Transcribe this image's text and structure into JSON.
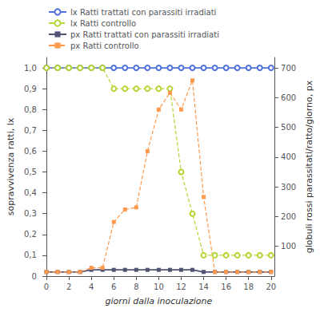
{
  "chart_data": {
    "type": "line",
    "xlabel": "giorni dalla inoculazione",
    "ylabel": "sopravvivenza ratti, lx",
    "y2label": "globuli rossi parassitati/ratto/giorno, px",
    "x": [
      0,
      1,
      2,
      3,
      4,
      5,
      6,
      7,
      8,
      9,
      10,
      11,
      12,
      13,
      14,
      15,
      16,
      17,
      18,
      19,
      20
    ],
    "xlim": [
      -0.3,
      20.3
    ],
    "xticks": [
      0,
      2,
      4,
      6,
      8,
      10,
      12,
      14,
      16,
      18,
      20
    ],
    "ylim": [
      0.0,
      1.05
    ],
    "yticks": [
      0,
      {
        "value": 0.1,
        "label": "0,1"
      },
      {
        "value": 0.2,
        "label": "0,2"
      },
      {
        "value": 0.3,
        "label": "0,3"
      },
      {
        "value": 0.4,
        "label": "0,4"
      },
      {
        "value": 0.5,
        "label": "0,5"
      },
      {
        "value": 0.6,
        "label": "0,6"
      },
      {
        "value": 0.7,
        "label": "0,7"
      },
      {
        "value": 0.8,
        "label": "0,8"
      },
      {
        "value": 0.9,
        "label": "0,9"
      },
      {
        "value": 1.0,
        "label": "1,0"
      }
    ],
    "y2lim": [
      0,
      735
    ],
    "y2ticks": [
      100,
      200,
      300,
      400,
      500,
      600,
      700
    ],
    "grid": false,
    "legend": "upper left",
    "series": [
      {
        "name": "lx Ratti trattati con parassiti irradiati",
        "axis": "y",
        "marker": "circle",
        "line_style": "solid",
        "values": [
          1.0,
          1.0,
          1.0,
          1.0,
          1.0,
          1.0,
          1.0,
          1.0,
          1.0,
          1.0,
          1.0,
          1.0,
          1.0,
          1.0,
          1.0,
          1.0,
          1.0,
          1.0,
          1.0,
          1.0,
          1.0
        ]
      },
      {
        "name": "lx Ratti controllo",
        "axis": "y",
        "marker": "circle",
        "line_style": "dashed",
        "values": [
          1.0,
          1.0,
          1.0,
          1.0,
          1.0,
          1.0,
          0.9,
          0.9,
          0.9,
          0.9,
          0.9,
          0.9,
          0.5,
          0.3,
          0.1,
          0.1,
          0.1,
          0.1,
          0.1,
          0.1,
          0.1
        ]
      },
      {
        "name": "px Ratti trattati con parassiti irradiati",
        "axis": "y2",
        "marker": "square",
        "line_style": "solid",
        "values": [
          14,
          14,
          14,
          14,
          21,
          21,
          21,
          21,
          21,
          21,
          21,
          21,
          21,
          21,
          14,
          14,
          14,
          14,
          14,
          14,
          14
        ]
      },
      {
        "name": "px Ratti controllo",
        "axis": "y2",
        "marker": "square",
        "line_style": "dashed",
        "values": [
          14,
          14,
          14,
          14,
          28,
          28,
          182,
          224,
          231,
          420,
          560,
          616,
          560,
          658,
          266,
          14,
          14,
          14,
          14,
          14,
          14
        ]
      }
    ]
  }
}
